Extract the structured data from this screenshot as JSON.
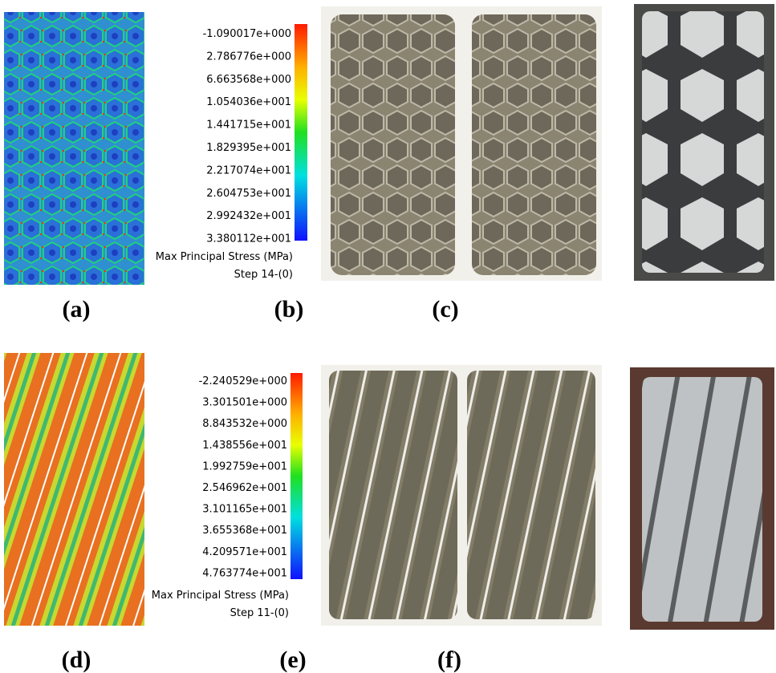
{
  "rows": [
    {
      "colorbar": {
        "labels": [
          "-1.090017e+000",
          "2.786776e+000",
          "6.663568e+000",
          "1.054036e+001",
          "1.441715e+001",
          "1.829395e+001",
          "2.217074e+001",
          "2.604753e+001",
          "2.992432e+001",
          "3.380112e+001"
        ],
        "title": "Max Principal Stress (MPa)",
        "step": "Step 14-(0)"
      },
      "panel_labels": [
        "(a)",
        "(b)",
        "(c)"
      ]
    },
    {
      "colorbar": {
        "labels": [
          "-2.240529e+000",
          "3.301501e+000",
          "8.843532e+000",
          "1.438556e+001",
          "1.992759e+001",
          "2.546962e+001",
          "3.101165e+001",
          "3.655368e+001",
          "4.209571e+001",
          "4.763774e+001"
        ],
        "title": "Max Principal Stress (MPa)",
        "step": "Step 11-(0)"
      },
      "panel_labels": [
        "(d)",
        "(e)",
        "(f)"
      ]
    }
  ]
}
